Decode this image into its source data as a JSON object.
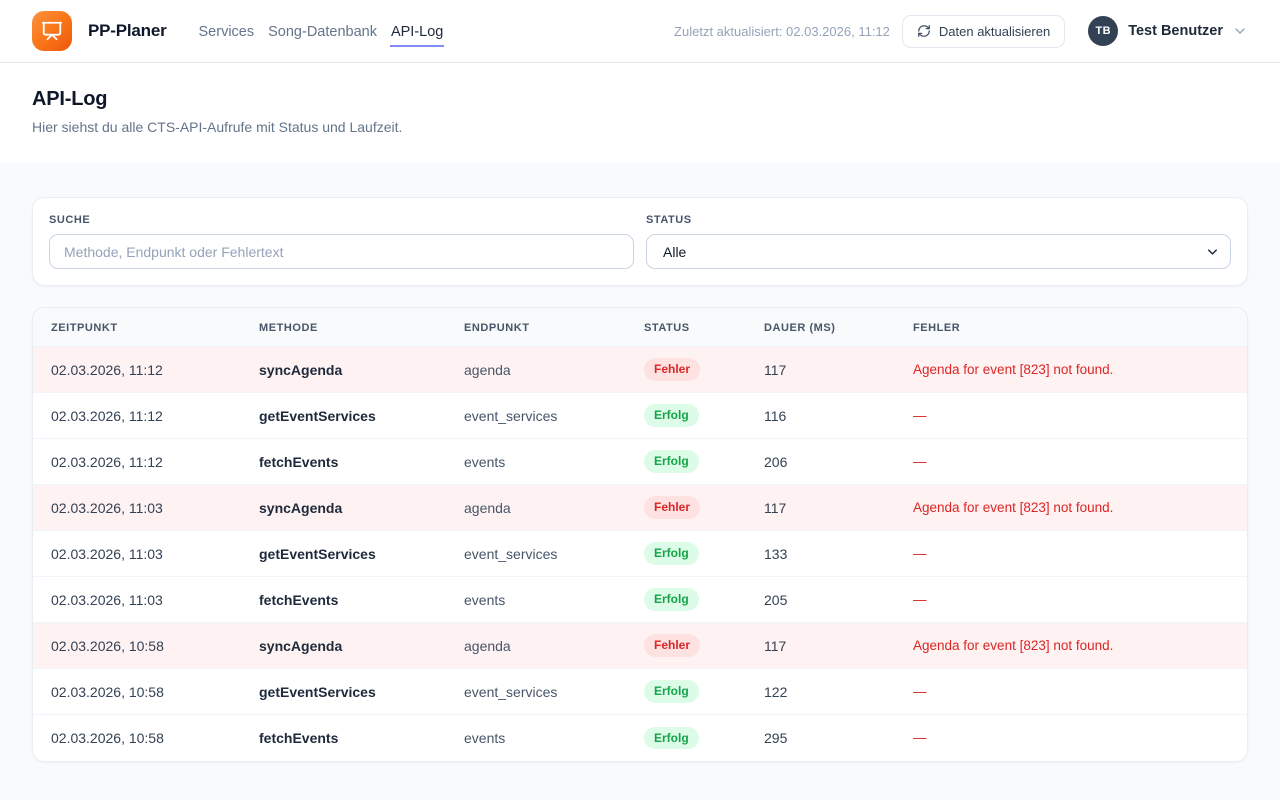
{
  "brand": {
    "name": "PP-Planer"
  },
  "nav": {
    "items": [
      {
        "label": "Services"
      },
      {
        "label": "Song-Datenbank"
      },
      {
        "label": "API-Log"
      }
    ],
    "active_index": 2
  },
  "topbar": {
    "last_updated": "Zuletzt aktualisiert: 02.03.2026, 11:12",
    "refresh_label": "Daten aktualisieren",
    "user": {
      "initials": "TB",
      "name": "Test Benutzer"
    }
  },
  "page": {
    "title": "API-Log",
    "subtitle": "Hier siehst du alle CTS-API-Aufrufe mit Status und Laufzeit."
  },
  "filters": {
    "search": {
      "label": "SUCHE",
      "placeholder": "Methode, Endpunkt oder Fehlertext",
      "value": ""
    },
    "status": {
      "label": "STATUS",
      "value": "Alle"
    }
  },
  "table": {
    "columns": [
      "ZEITPUNKT",
      "METHODE",
      "ENDPUNKT",
      "STATUS",
      "DAUER (MS)",
      "FEHLER"
    ],
    "rows": [
      {
        "zeitpunkt": "02.03.2026, 11:12",
        "methode": "syncAgenda",
        "endpunkt": "agenda",
        "status": "Fehler",
        "type": "error",
        "dauer": "117",
        "fehler": "Agenda for event [823] not found."
      },
      {
        "zeitpunkt": "02.03.2026, 11:12",
        "methode": "getEventServices",
        "endpunkt": "event_services",
        "status": "Erfolg",
        "type": "success",
        "dauer": "116",
        "fehler": "—"
      },
      {
        "zeitpunkt": "02.03.2026, 11:12",
        "methode": "fetchEvents",
        "endpunkt": "events",
        "status": "Erfolg",
        "type": "success",
        "dauer": "206",
        "fehler": "—"
      },
      {
        "zeitpunkt": "02.03.2026, 11:03",
        "methode": "syncAgenda",
        "endpunkt": "agenda",
        "status": "Fehler",
        "type": "error",
        "dauer": "117",
        "fehler": "Agenda for event [823] not found."
      },
      {
        "zeitpunkt": "02.03.2026, 11:03",
        "methode": "getEventServices",
        "endpunkt": "event_services",
        "status": "Erfolg",
        "type": "success",
        "dauer": "133",
        "fehler": "—"
      },
      {
        "zeitpunkt": "02.03.2026, 11:03",
        "methode": "fetchEvents",
        "endpunkt": "events",
        "status": "Erfolg",
        "type": "success",
        "dauer": "205",
        "fehler": "—"
      },
      {
        "zeitpunkt": "02.03.2026, 10:58",
        "methode": "syncAgenda",
        "endpunkt": "agenda",
        "status": "Fehler",
        "type": "error",
        "dauer": "117",
        "fehler": "Agenda for event [823] not found."
      },
      {
        "zeitpunkt": "02.03.2026, 10:58",
        "methode": "getEventServices",
        "endpunkt": "event_services",
        "status": "Erfolg",
        "type": "success",
        "dauer": "122",
        "fehler": "—"
      },
      {
        "zeitpunkt": "02.03.2026, 10:58",
        "methode": "fetchEvents",
        "endpunkt": "events",
        "status": "Erfolg",
        "type": "success",
        "dauer": "295",
        "fehler": "—"
      }
    ]
  },
  "icons": {
    "logo": "presentation-icon",
    "refresh": "refresh-icon",
    "user_menu": "chevron-down-icon",
    "select": "chevron-down-icon"
  },
  "colors": {
    "brand_orange": "#f97316",
    "active_tab_underline": "#818cf8",
    "error_text": "#dc2626",
    "error_badge_bg": "#fee2e2",
    "error_row_bg": "#fef2f2",
    "success_text": "#16a34a",
    "success_badge_bg": "#dcfce7",
    "avatar_bg": "#334155",
    "page_bg": "#f8fafc"
  }
}
